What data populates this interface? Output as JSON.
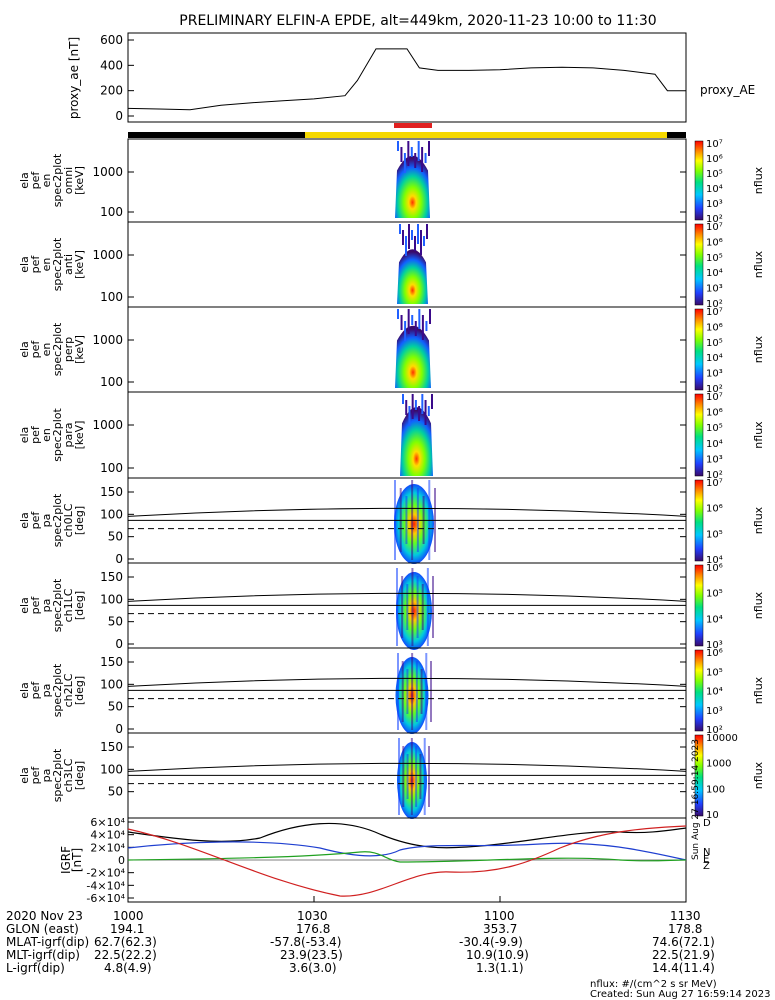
{
  "title": "PRELIMINARY ELFIN-A EPDE, alt=449km, 2020-11-23 10:00 to 11:30",
  "created": "Created: Sun Aug 27 16:59:14 2023",
  "units_note": "nflux: #/(cm^2 s sr MeV)",
  "side_stamp": "Sun Aug 27 16:59:14 2023",
  "colors": {
    "science_bar": "#e02020",
    "yellow_bar": "#f5d800",
    "black_bar": "#000000",
    "trace_black": "#000000",
    "trace_blue": "#1f3fd0",
    "trace_green": "#20a020",
    "trace_red": "#d02020"
  },
  "chart_data": [
    {
      "type": "line",
      "ylabel": "proxy_ae [nT]",
      "series_label": "proxy_AE",
      "yticks": [
        "0",
        "200",
        "400",
        "600"
      ],
      "ylim": [
        -40,
        660
      ],
      "x": [
        0,
        5,
        10,
        15,
        20,
        25,
        30,
        35,
        37,
        40,
        45,
        47,
        50,
        55,
        60,
        65,
        70,
        75,
        80,
        85,
        87,
        90
      ],
      "values": [
        60,
        55,
        50,
        85,
        105,
        120,
        135,
        160,
        280,
        530,
        530,
        380,
        360,
        360,
        365,
        380,
        385,
        380,
        360,
        330,
        200,
        200
      ]
    },
    {
      "type": "heatmap",
      "ylabel_lines": [
        "ela",
        "pef",
        "en",
        "spec2plot",
        "omni",
        "[keV]"
      ],
      "yticks": [
        "100",
        "1000"
      ],
      "cbar_ticks": [
        "10²",
        "10³",
        "10⁴",
        "10⁵",
        "10⁶",
        "10⁷"
      ],
      "cbar_label": "nflux"
    },
    {
      "type": "heatmap",
      "ylabel_lines": [
        "ela",
        "pef",
        "en",
        "spec2plot",
        "anti",
        "[keV]"
      ],
      "yticks": [
        "100",
        "1000"
      ],
      "cbar_ticks": [
        "10²",
        "10³",
        "10⁴",
        "10⁵",
        "10⁶",
        "10⁷"
      ],
      "cbar_label": "nflux"
    },
    {
      "type": "heatmap",
      "ylabel_lines": [
        "ela",
        "pef",
        "en",
        "spec2plot",
        "perp",
        "[keV]"
      ],
      "yticks": [
        "100",
        "1000"
      ],
      "cbar_ticks": [
        "10²",
        "10³",
        "10⁴",
        "10⁵",
        "10⁶",
        "10⁷"
      ],
      "cbar_label": "nflux"
    },
    {
      "type": "heatmap",
      "ylabel_lines": [
        "ela",
        "pef",
        "en",
        "spec2plot",
        "para",
        "[keV]"
      ],
      "yticks": [
        "100",
        "1000"
      ],
      "cbar_ticks": [
        "10²",
        "10³",
        "10⁴",
        "10⁵",
        "10⁶",
        "10⁷"
      ],
      "cbar_label": "nflux"
    },
    {
      "type": "heatmap",
      "ylabel_lines": [
        "ela",
        "pef",
        "pa",
        "spec2plot",
        "ch0LC",
        "[deg]"
      ],
      "yticks": [
        "0",
        "50",
        "100",
        "150"
      ],
      "cbar_ticks": [
        "10⁴",
        "10⁵",
        "10⁶",
        "10⁷"
      ],
      "cbar_label": "nflux"
    },
    {
      "type": "heatmap",
      "ylabel_lines": [
        "ela",
        "pef",
        "pa",
        "spec2plot",
        "ch1LC",
        "[deg]"
      ],
      "yticks": [
        "0",
        "50",
        "100",
        "150"
      ],
      "cbar_ticks": [
        "10³",
        "10⁴",
        "10⁵",
        "10⁶"
      ],
      "cbar_label": "nflux"
    },
    {
      "type": "heatmap",
      "ylabel_lines": [
        "ela",
        "pef",
        "pa",
        "spec2plot",
        "ch2LC",
        "[deg]"
      ],
      "yticks": [
        "0",
        "50",
        "100",
        "150"
      ],
      "cbar_ticks": [
        "10²",
        "10³",
        "10⁴",
        "10⁵",
        "10⁶"
      ],
      "cbar_label": "nflux"
    },
    {
      "type": "heatmap",
      "ylabel_lines": [
        "ela",
        "pef",
        "pa",
        "spec2plot",
        "ch3LC",
        "[deg]"
      ],
      "yticks": [
        "50",
        "100",
        "150"
      ],
      "cbar_ticks": [
        "10",
        "100",
        "1000",
        "10000"
      ],
      "cbar_label": "nflux"
    },
    {
      "type": "line",
      "ylabel_lines": [
        "IGRF",
        "[nT]"
      ],
      "yticks": [
        "-6×10⁴",
        "-4×10⁴",
        "-2×10⁴",
        "0",
        "2×10⁴",
        "4×10⁴",
        "6×10⁴"
      ],
      "ylim": [
        -60000,
        60000
      ],
      "legend": [
        "D",
        "N",
        "E",
        "Z"
      ]
    }
  ],
  "footer": {
    "rows": [
      {
        "label": "2020 Nov 23",
        "values": [
          "1000",
          "1030",
          "1100",
          "1130"
        ]
      },
      {
        "label": "GLON (east)",
        "values": [
          "194.1",
          "176.8",
          "353.7",
          "178.8"
        ]
      },
      {
        "label": "MLAT-igrf(dip)",
        "values": [
          "62.7(62.3)",
          "-57.8(-53.4)",
          "-30.4(-9.9)",
          "74.6(72.1)"
        ]
      },
      {
        "label": "MLT-igrf(dip)",
        "values": [
          "22.5(22.2)",
          "23.9(23.5)",
          "10.9(10.9)",
          "22.5(21.9)"
        ]
      },
      {
        "label": "L-igrf(dip)",
        "values": [
          "4.8(4.9)",
          "3.6(3.0)",
          "1.3(1.1)",
          "14.4(11.4)"
        ]
      }
    ]
  }
}
